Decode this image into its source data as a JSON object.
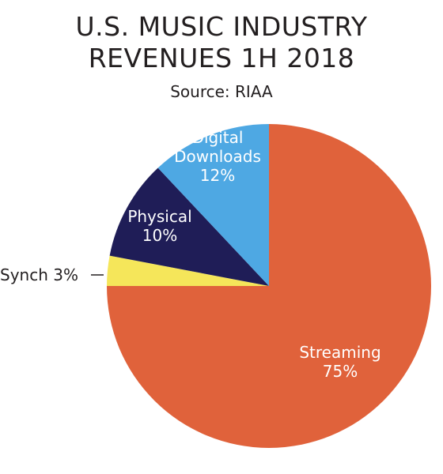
{
  "chart_data": {
    "type": "pie",
    "title_line1": "U.S. MUSIC INDUSTRY",
    "title_line2": "REVENUES 1H 2018",
    "subtitle": "Source: RIAA",
    "slices": [
      {
        "name": "Streaming",
        "value": 75,
        "value_label": "75%",
        "name_lines": [
          "Streaming"
        ],
        "color": "#e0623b",
        "label_color": "#ffffff"
      },
      {
        "name": "Synch",
        "value": 3,
        "value_label": "Synch 3%",
        "name_lines": [],
        "color": "#f5e65a",
        "label_color": "#231f20",
        "external": true
      },
      {
        "name": "Physical",
        "value": 10,
        "value_label": "10%",
        "name_lines": [
          "Physical"
        ],
        "color": "#1f1d57",
        "label_color": "#ffffff"
      },
      {
        "name": "Digital Downloads",
        "value": 12,
        "value_label": "12%",
        "name_lines": [
          "Digital",
          "Downloads"
        ],
        "color": "#4ea8e3",
        "label_color": "#ffffff"
      }
    ]
  }
}
